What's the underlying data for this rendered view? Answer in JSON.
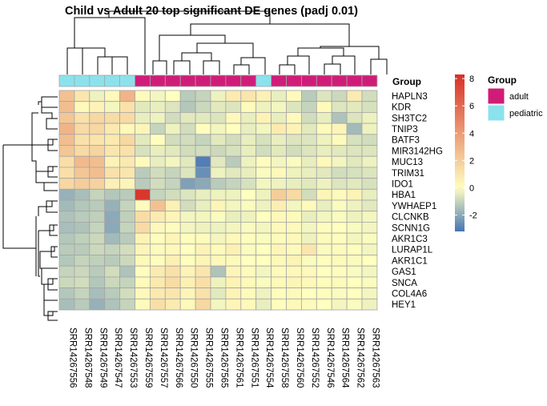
{
  "chart_data": {
    "type": "heatmap",
    "title": "Child vs Adult 20 top significant DE genes (padj 0.01)",
    "columns": [
      "SRR14267556",
      "SRR14267548",
      "SRR14267549",
      "SRR14267547",
      "SRR14267553",
      "SRR14267559",
      "SRR14267557",
      "SRR14267566",
      "SRR14267550",
      "SRR14267555",
      "SRR14267565",
      "SRR14267561",
      "SRR14267551",
      "SRR14267554",
      "SRR14267558",
      "SRR14267560",
      "SRR14267552",
      "SRR14267546",
      "SRR14267564",
      "SRR14267562",
      "SRR14267563"
    ],
    "rows": [
      "HAPLN3",
      "KDR",
      "SH3TC2",
      "TNIP3",
      "BATF3",
      "MIR3142HG",
      "MUC13",
      "TRIM31",
      "IDO1",
      "HBA1",
      "YWHAEP1",
      "CLCNKB",
      "SCNN1G",
      "AKR1C3",
      "LURAP1L",
      "AKR1C1",
      "GAS1",
      "SNCA",
      "COL4A6",
      "HEY1"
    ],
    "column_group": [
      "pediatric",
      "pediatric",
      "pediatric",
      "pediatric",
      "pediatric",
      "adult",
      "adult",
      "adult",
      "adult",
      "adult",
      "adult",
      "adult",
      "adult",
      "pediatric",
      "adult",
      "adult",
      "adult",
      "adult",
      "adult",
      "adult",
      "adult"
    ],
    "annotation_title": "Group",
    "legend": {
      "title": "Group",
      "entries": [
        {
          "name": "adult",
          "color": "#D01C79"
        },
        {
          "name": "pediatric",
          "color": "#8BE2EC"
        }
      ]
    },
    "colorbar": {
      "min": -3.2,
      "max": 8.3,
      "ticks": [
        8,
        6,
        4,
        2,
        0,
        -2
      ]
    },
    "colors": {
      "low": "#4575B4",
      "mid": "#FFFFBF",
      "high": "#D73027",
      "cell_border": "#A5A5A5"
    },
    "values": [
      [
        2.5,
        1.0,
        -0.3,
        0.3,
        3.0,
        0.2,
        -0.2,
        0.0,
        -1.2,
        -1.0,
        -0.3,
        0.8,
        1.0,
        0.6,
        -0.4,
        0.2,
        -1.2,
        -0.6,
        -0.9,
        0.8,
        -0.8
      ],
      [
        2.6,
        0.3,
        0.5,
        -0.2,
        1.2,
        -0.5,
        -0.4,
        -0.6,
        -1.3,
        -0.9,
        -0.5,
        -0.6,
        0.2,
        -0.3,
        -0.2,
        -0.6,
        -1.0,
        0.2,
        -0.6,
        -0.5,
        -0.7
      ],
      [
        2.3,
        1.2,
        1.6,
        1.4,
        1.5,
        -0.4,
        -0.3,
        -0.8,
        -0.5,
        -0.5,
        -0.6,
        0.3,
        -0.4,
        0.5,
        -0.4,
        0.2,
        -0.8,
        -0.4,
        -1.4,
        -0.6,
        -0.3
      ],
      [
        3.0,
        1.5,
        1.6,
        0.9,
        0.3,
        0.4,
        -1.0,
        -0.3,
        -0.8,
        0.1,
        -0.2,
        0.0,
        -0.4,
        -0.2,
        0.8,
        0.5,
        -0.5,
        0.2,
        0.4,
        -1.6,
        -0.3
      ],
      [
        2.6,
        1.2,
        1.1,
        0.9,
        1.6,
        -0.5,
        0.1,
        -0.8,
        -0.8,
        -1.0,
        -0.5,
        -0.8,
        -0.4,
        -0.7,
        -0.4,
        -0.6,
        -0.6,
        -0.3,
        0.2,
        -0.7,
        -0.8
      ],
      [
        2.3,
        1.5,
        1.7,
        1.0,
        1.2,
        -0.7,
        -0.4,
        -0.5,
        -0.8,
        -0.8,
        -0.9,
        -0.7,
        -0.4,
        -0.8,
        -0.5,
        -0.8,
        -0.6,
        -0.4,
        -0.5,
        -0.6,
        -0.6
      ],
      [
        1.3,
        2.8,
        2.6,
        0.5,
        0.9,
        0.2,
        -0.4,
        -0.2,
        -0.5,
        -3.0,
        -0.5,
        -1.2,
        -0.3,
        0.1,
        -0.2,
        -0.1,
        -0.4,
        0.3,
        -0.2,
        -0.5,
        -0.3
      ],
      [
        1.3,
        2.3,
        2.6,
        1.2,
        1.0,
        -1.2,
        -0.8,
        -1.0,
        -0.6,
        -2.6,
        -0.3,
        -0.5,
        -0.4,
        -0.1,
        0.3,
        -0.3,
        -0.4,
        -0.5,
        -0.8,
        -0.7,
        -0.6
      ],
      [
        1.6,
        2.0,
        1.8,
        0.6,
        0.4,
        -1.2,
        -0.8,
        -1.0,
        -2.2,
        -2.0,
        -1.2,
        -1.0,
        -0.7,
        -0.2,
        -0.3,
        -0.4,
        -0.5,
        -0.3,
        -0.6,
        -0.5,
        -0.7
      ],
      [
        -1.8,
        -1.5,
        -1.0,
        -1.3,
        -1.2,
        8.0,
        -1.0,
        -0.8,
        -0.6,
        -0.4,
        -0.3,
        -0.3,
        0.0,
        -0.3,
        2.0,
        1.5,
        -0.8,
        0.4,
        0.2,
        0.5,
        -0.4
      ],
      [
        -1.6,
        -1.3,
        -1.2,
        -1.8,
        -1.0,
        0.2,
        2.5,
        0.6,
        -0.8,
        -0.4,
        0.4,
        -0.2,
        -0.1,
        -0.3,
        0.7,
        -0.2,
        0.2,
        -0.4,
        -0.1,
        -0.3,
        -0.5
      ],
      [
        -1.4,
        -1.2,
        -1.1,
        -2.0,
        -1.1,
        1.4,
        0.8,
        0.4,
        -0.2,
        -0.2,
        -0.1,
        -0.4,
        -0.3,
        0.0,
        0.3,
        0.2,
        -0.4,
        -0.2,
        -0.1,
        -0.3,
        -0.2
      ],
      [
        -1.5,
        -1.4,
        -1.0,
        -2.0,
        -1.0,
        1.5,
        0.3,
        0.1,
        -0.2,
        -0.3,
        -0.3,
        -0.2,
        -0.1,
        -0.2,
        0.3,
        0.2,
        -0.2,
        0.1,
        0.0,
        -0.1,
        -0.2
      ],
      [
        -1.3,
        -1.1,
        -0.9,
        -1.6,
        -1.2,
        0.5,
        0.1,
        0.4,
        0.1,
        0.2,
        -0.2,
        0.3,
        0.1,
        -0.1,
        0.2,
        0.3,
        -0.3,
        0.2,
        0.1,
        -0.2,
        -0.1
      ],
      [
        -1.2,
        -1.2,
        -0.9,
        -1.0,
        -0.8,
        0.4,
        0.2,
        0.3,
        0.0,
        0.5,
        0.2,
        0.6,
        -0.1,
        0.0,
        0.4,
        0.2,
        1.0,
        -0.1,
        0.2,
        0.1,
        -0.2
      ],
      [
        -1.3,
        -1.0,
        -1.1,
        -1.2,
        -0.9,
        0.3,
        0.1,
        0.6,
        0.1,
        0.4,
        0.3,
        0.2,
        0.0,
        0.0,
        0.3,
        0.5,
        -0.1,
        0.1,
        0.2,
        -0.1,
        0.0
      ],
      [
        -1.0,
        -0.9,
        -1.2,
        -0.8,
        -1.4,
        0.1,
        0.8,
        1.2,
        0.5,
        1.0,
        -1.4,
        0.4,
        0.2,
        -0.2,
        0.2,
        0.3,
        0.3,
        0.0,
        0.1,
        -0.1,
        -0.2
      ],
      [
        -0.9,
        -0.8,
        -1.3,
        -0.9,
        -1.0,
        0.2,
        0.9,
        1.4,
        0.6,
        1.3,
        -0.3,
        0.5,
        0.3,
        -0.1,
        0.3,
        0.4,
        0.3,
        0.1,
        0.2,
        0.0,
        -0.1
      ],
      [
        -1.3,
        -1.0,
        -1.5,
        -1.2,
        -0.8,
        0.3,
        0.9,
        1.0,
        0.4,
        1.2,
        -0.5,
        0.5,
        0.2,
        -0.3,
        0.1,
        0.2,
        0.0,
        0.1,
        -0.1,
        0.0,
        -0.2
      ],
      [
        -1.5,
        -1.2,
        -1.8,
        -1.4,
        -1.0,
        0.2,
        1.3,
        0.8,
        0.3,
        1.6,
        -0.2,
        0.4,
        0.3,
        -0.4,
        0.1,
        0.3,
        0.2,
        0.0,
        -0.2,
        -0.1,
        -0.3
      ]
    ]
  }
}
